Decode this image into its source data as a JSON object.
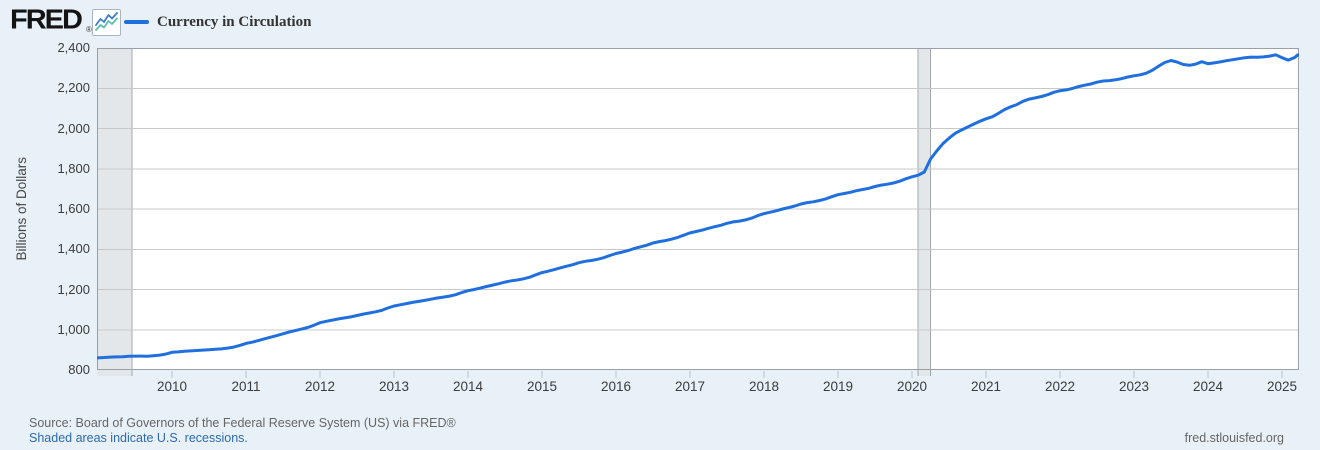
{
  "header": {
    "logo_text": "FRED",
    "logo_registered": "®"
  },
  "chart_data": {
    "type": "line",
    "title": "Currency in Circulation",
    "ylabel": "Billions of Dollars",
    "ylim": [
      800,
      2400
    ],
    "ytick_step": 200,
    "xticks": [
      2010,
      2011,
      2012,
      2013,
      2014,
      2015,
      2016,
      2017,
      2018,
      2019,
      2020,
      2021,
      2022,
      2023,
      2024,
      2025
    ],
    "x_start_year": 2009,
    "frequency": "monthly",
    "grid": true,
    "legend_position": "top-left",
    "recessions": [
      {
        "start": 2008.9,
        "end": 2009.46
      },
      {
        "start": 2020.083,
        "end": 2020.25
      }
    ],
    "values": [
      860,
      862,
      864,
      865,
      866,
      868,
      869,
      869,
      868,
      871,
      874,
      879,
      888,
      890,
      893,
      895,
      897,
      899,
      901,
      903,
      905,
      909,
      914,
      922,
      932,
      938,
      946,
      955,
      963,
      971,
      980,
      989,
      996,
      1003,
      1011,
      1022,
      1035,
      1042,
      1048,
      1054,
      1059,
      1064,
      1071,
      1078,
      1083,
      1089,
      1096,
      1108,
      1118,
      1124,
      1130,
      1136,
      1141,
      1146,
      1152,
      1158,
      1162,
      1167,
      1174,
      1185,
      1194,
      1200,
      1207,
      1215,
      1222,
      1229,
      1237,
      1243,
      1247,
      1253,
      1261,
      1273,
      1284,
      1291,
      1299,
      1308,
      1316,
      1323,
      1333,
      1340,
      1344,
      1350,
      1358,
      1369,
      1379,
      1386,
      1394,
      1404,
      1412,
      1420,
      1431,
      1438,
      1443,
      1450,
      1459,
      1470,
      1481,
      1488,
      1495,
      1504,
      1512,
      1519,
      1529,
      1536,
      1540,
      1546,
      1555,
      1567,
      1577,
      1584,
      1591,
      1600,
      1607,
      1615,
      1625,
      1632,
      1636,
      1642,
      1650,
      1661,
      1671,
      1677,
      1683,
      1691,
      1697,
      1703,
      1712,
      1719,
      1723,
      1729,
      1738,
      1750,
      1760,
      1768,
      1784,
      1848,
      1888,
      1924,
      1952,
      1976,
      1992,
      2007,
      2022,
      2036,
      2048,
      2058,
      2075,
      2094,
      2108,
      2119,
      2135,
      2146,
      2152,
      2159,
      2168,
      2180,
      2188,
      2192,
      2199,
      2208,
      2215,
      2221,
      2230,
      2236,
      2238,
      2242,
      2248,
      2256,
      2262,
      2267,
      2275,
      2290,
      2310,
      2328,
      2338,
      2330,
      2318,
      2314,
      2320,
      2332,
      2322,
      2326,
      2331,
      2337,
      2342,
      2347,
      2352,
      2355,
      2354,
      2356,
      2360,
      2366,
      2352,
      2340,
      2352,
      2366
    ],
    "colors": {
      "line": "#1f6fde",
      "recession_fill": "#e4e7ea",
      "recession_edge": "#a2a8ad",
      "grid": "#c8c8c8",
      "border": "#9aa0a5",
      "tick": "#b5c5d4",
      "plot_bg": "#ffffff",
      "page_bg": "#e8f1f8"
    }
  },
  "footer": {
    "source_text": "Source: Board of Governors of the Federal Reserve System (US) via FRED®",
    "recession_note": "Shaded areas indicate U.S. recessions.",
    "site_url": "fred.stlouisfed.org"
  }
}
